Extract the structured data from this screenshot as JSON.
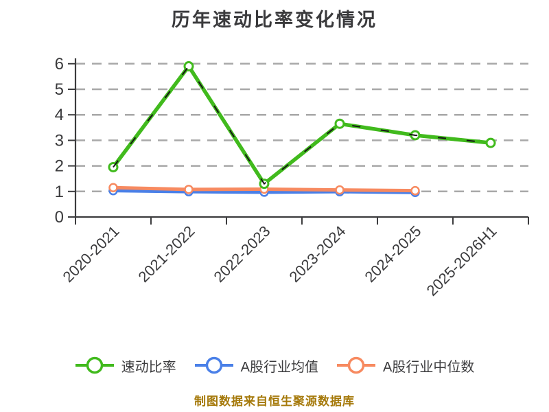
{
  "colors": {
    "text": "#3b3b3d",
    "title": "#3a3a3c",
    "axis": "#3c3c3e",
    "grid": "#a8a8a8",
    "marker_fill": "#ffffff",
    "dash_overlay": "#161616",
    "source_note": "#a5790a",
    "quick_ratio": "#41ba1d",
    "industry_mean": "#4a80e8",
    "industry_median": "#f78a60"
  },
  "chart_data": {
    "type": "line",
    "title": "历年速动比率变化情况",
    "categories": [
      "2020-2021",
      "2021-2022",
      "2022-2023",
      "2023-2024",
      "2024-2025",
      "2025-2026H1"
    ],
    "series": [
      {
        "name": "速动比率",
        "color_key": "quick_ratio",
        "values": [
          1.95,
          5.9,
          1.3,
          3.65,
          3.2,
          2.9
        ],
        "dash_overlay": true,
        "line_width": 5.5,
        "marker_radius": 6,
        "marker_stroke": 3
      },
      {
        "name": "A股行业均值",
        "color_key": "industry_mean",
        "values": [
          1.03,
          0.99,
          0.97,
          0.99,
          0.96,
          null
        ],
        "dash_overlay": false,
        "line_width": 5,
        "marker_radius": 5.5,
        "marker_stroke": 2.5
      },
      {
        "name": "A股行业中位数",
        "color_key": "industry_median",
        "values": [
          1.15,
          1.08,
          1.09,
          1.06,
          1.03,
          null
        ],
        "dash_overlay": false,
        "line_width": 5,
        "marker_radius": 5.5,
        "marker_stroke": 2.5
      }
    ],
    "ylim": [
      0,
      6
    ],
    "yticks": [
      0,
      1,
      2,
      3,
      4,
      5,
      6
    ],
    "grid": "horizontal dashed",
    "legend_position": "bottom",
    "x_label_rotation_deg": 45,
    "source_note": "制图数据来自恒生聚源数据库"
  }
}
